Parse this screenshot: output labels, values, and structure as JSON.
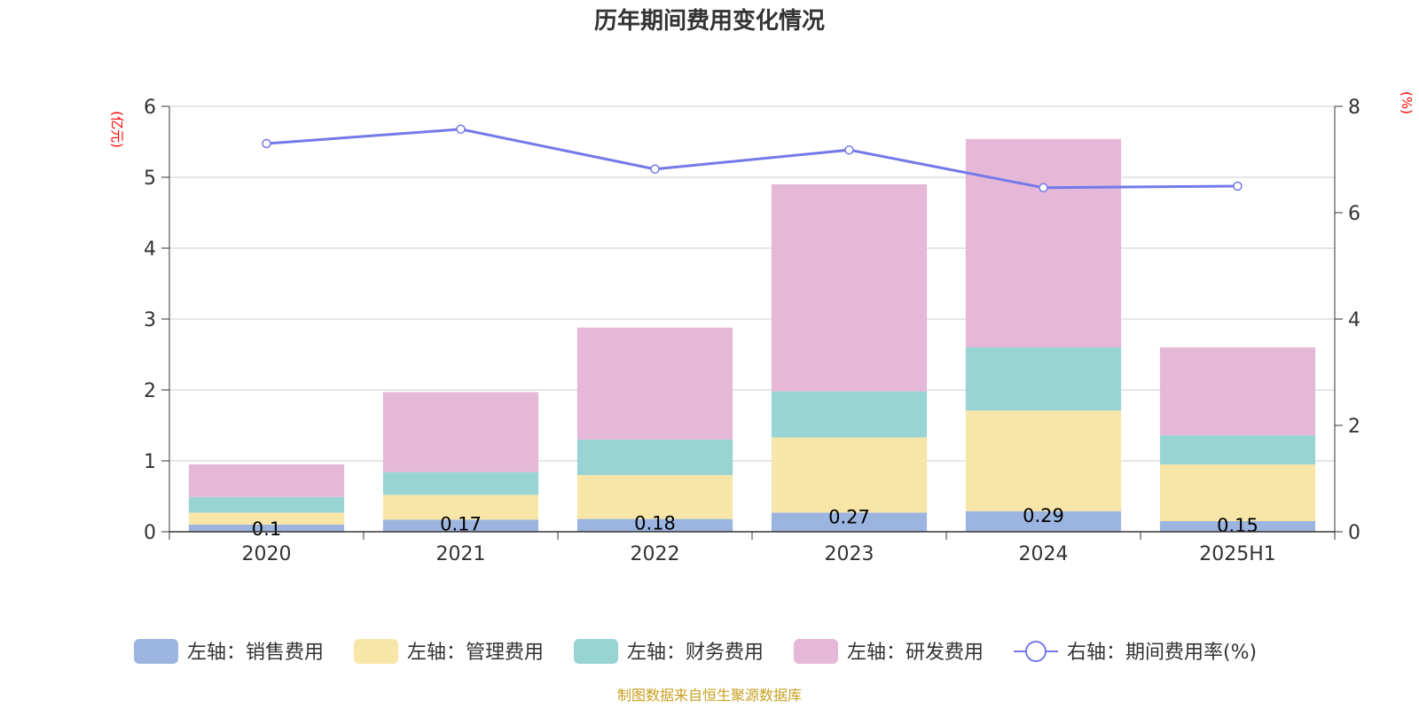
{
  "chart_data": {
    "type": "bar",
    "title": "历年期间费用变化情况",
    "categories": [
      "2020",
      "2021",
      "2022",
      "2023",
      "2024",
      "2025H1"
    ],
    "y_left": {
      "unit": "(亿元)",
      "lim": [
        0,
        6
      ],
      "ticks": [
        "0",
        "1",
        "2",
        "3",
        "4",
        "5",
        "6"
      ]
    },
    "y_right": {
      "unit": "(%)",
      "lim": [
        0,
        8
      ],
      "ticks": [
        "0",
        "2",
        "4",
        "6",
        "8"
      ]
    },
    "grid": true,
    "series": [
      {
        "name": "左轴：销售费用",
        "type": "bar",
        "axis": "left",
        "color": "#9bb5e0",
        "values": [
          0.1,
          0.17,
          0.18,
          0.27,
          0.29,
          0.15
        ],
        "labels": [
          "0.1",
          "0.17",
          "0.18",
          "0.27",
          "0.29",
          "0.15"
        ]
      },
      {
        "name": "左轴：管理费用",
        "type": "bar",
        "axis": "left",
        "color": "#f8e6a8",
        "values": [
          0.17,
          0.35,
          0.62,
          1.06,
          1.42,
          0.8
        ]
      },
      {
        "name": "左轴：财务费用",
        "type": "bar",
        "axis": "left",
        "color": "#98d4d4",
        "values": [
          0.22,
          0.32,
          0.5,
          0.65,
          0.89,
          0.41
        ]
      },
      {
        "name": "左轴：研发费用",
        "type": "bar",
        "axis": "left",
        "color": "#e6b8d8",
        "values": [
          0.46,
          1.13,
          1.58,
          2.92,
          2.94,
          1.24
        ]
      },
      {
        "name": "右轴：期间费用率(%)",
        "type": "line",
        "axis": "right",
        "color": "#7479e8",
        "values": [
          7.3,
          7.57,
          6.82,
          7.18,
          6.47,
          6.5
        ]
      }
    ],
    "legend_position": "bottom"
  },
  "source": "制图数据来自恒生聚源数据库"
}
